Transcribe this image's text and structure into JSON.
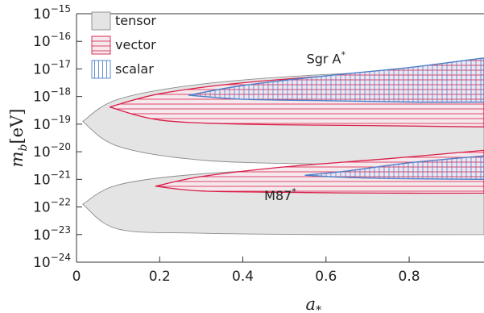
{
  "chart_data": {
    "type": "area",
    "title": "",
    "xlabel": "a",
    "xlabel_sub": "*",
    "ylabel": "m",
    "ylabel_sub": "b",
    "ylabel_unit": "[eV]",
    "xlim": [
      0,
      0.98
    ],
    "ylim_log10": [
      -24,
      -15
    ],
    "y_log_scale": true,
    "x_ticks": [
      0,
      0.2,
      0.4,
      0.6,
      0.8
    ],
    "x_tick_labels": [
      "0",
      "0.2",
      "0.4",
      "0.6",
      "0.8"
    ],
    "y_ticks_exponent": [
      -24,
      -23,
      -22,
      -21,
      -20,
      -19,
      -18,
      -17,
      -16,
      -15
    ],
    "y_tick_base": "10",
    "legend": {
      "placement": "top-left",
      "entries": [
        {
          "name": "tensor",
          "style": "solid-gray"
        },
        {
          "name": "vector",
          "style": "horizontal-hatch-red"
        },
        {
          "name": "scalar",
          "style": "vertical-hatch-blue"
        }
      ]
    },
    "annotations": [
      {
        "text": "Sgr A",
        "sup": "*",
        "x": 0.6,
        "y_log10": -16.8
      },
      {
        "text": "M87",
        "sup": "*",
        "x": 0.49,
        "y_log10": -21.75
      }
    ],
    "colors": {
      "tensor_fill": "#e4e4e4",
      "tensor_edge": "#8c8c8c",
      "vector_line": "#d81e48",
      "scalar_line": "#4a7fc8"
    },
    "regions": [
      {
        "kind": "tensor",
        "object": "Sgr A*",
        "tip": [
          0.015,
          -18.9
        ],
        "upper": [
          [
            0.1,
            -18.1
          ],
          [
            0.3,
            -17.55
          ],
          [
            0.6,
            -17.2
          ],
          [
            0.98,
            -17.0
          ]
        ],
        "lower": [
          [
            0.1,
            -19.8
          ],
          [
            0.3,
            -20.3
          ],
          [
            0.6,
            -20.45
          ],
          [
            0.98,
            -20.5
          ]
        ]
      },
      {
        "kind": "tensor",
        "object": "M87*",
        "tip": [
          0.015,
          -21.9
        ],
        "upper": [
          [
            0.1,
            -21.2
          ],
          [
            0.3,
            -20.8
          ],
          [
            0.6,
            -20.6
          ],
          [
            0.98,
            -20.5
          ]
        ],
        "lower": [
          [
            0.1,
            -22.8
          ],
          [
            0.3,
            -22.95
          ],
          [
            0.6,
            -23.0
          ],
          [
            0.98,
            -23.0
          ]
        ]
      },
      {
        "kind": "vector",
        "object": "Sgr A*",
        "tip": [
          0.08,
          -18.38
        ],
        "upper": [
          [
            0.2,
            -17.9
          ],
          [
            0.4,
            -17.5
          ],
          [
            0.7,
            -17.15
          ],
          [
            0.98,
            -16.85
          ]
        ],
        "lower": [
          [
            0.2,
            -18.85
          ],
          [
            0.4,
            -19.0
          ],
          [
            0.7,
            -19.05
          ],
          [
            0.98,
            -19.1
          ]
        ]
      },
      {
        "kind": "vector",
        "object": "M87*",
        "tip": [
          0.19,
          -21.25
        ],
        "upper": [
          [
            0.3,
            -20.9
          ],
          [
            0.5,
            -20.55
          ],
          [
            0.75,
            -20.25
          ],
          [
            0.98,
            -19.95
          ]
        ],
        "lower": [
          [
            0.3,
            -21.42
          ],
          [
            0.5,
            -21.47
          ],
          [
            0.75,
            -21.5
          ],
          [
            0.98,
            -21.5
          ]
        ]
      },
      {
        "kind": "scalar",
        "object": "Sgr A*",
        "tip": [
          0.27,
          -17.95
        ],
        "upper": [
          [
            0.4,
            -17.6
          ],
          [
            0.6,
            -17.25
          ],
          [
            0.8,
            -16.95
          ],
          [
            0.98,
            -16.6
          ]
        ],
        "lower": [
          [
            0.4,
            -18.1
          ],
          [
            0.6,
            -18.15
          ],
          [
            0.8,
            -18.2
          ],
          [
            0.98,
            -18.2
          ]
        ]
      },
      {
        "kind": "scalar",
        "object": "M87*",
        "tip": [
          0.55,
          -20.85
        ],
        "upper": [
          [
            0.65,
            -20.7
          ],
          [
            0.8,
            -20.4
          ],
          [
            0.98,
            -20.15
          ]
        ],
        "lower": [
          [
            0.65,
            -20.93
          ],
          [
            0.8,
            -20.98
          ],
          [
            0.98,
            -21.0
          ]
        ]
      }
    ]
  }
}
